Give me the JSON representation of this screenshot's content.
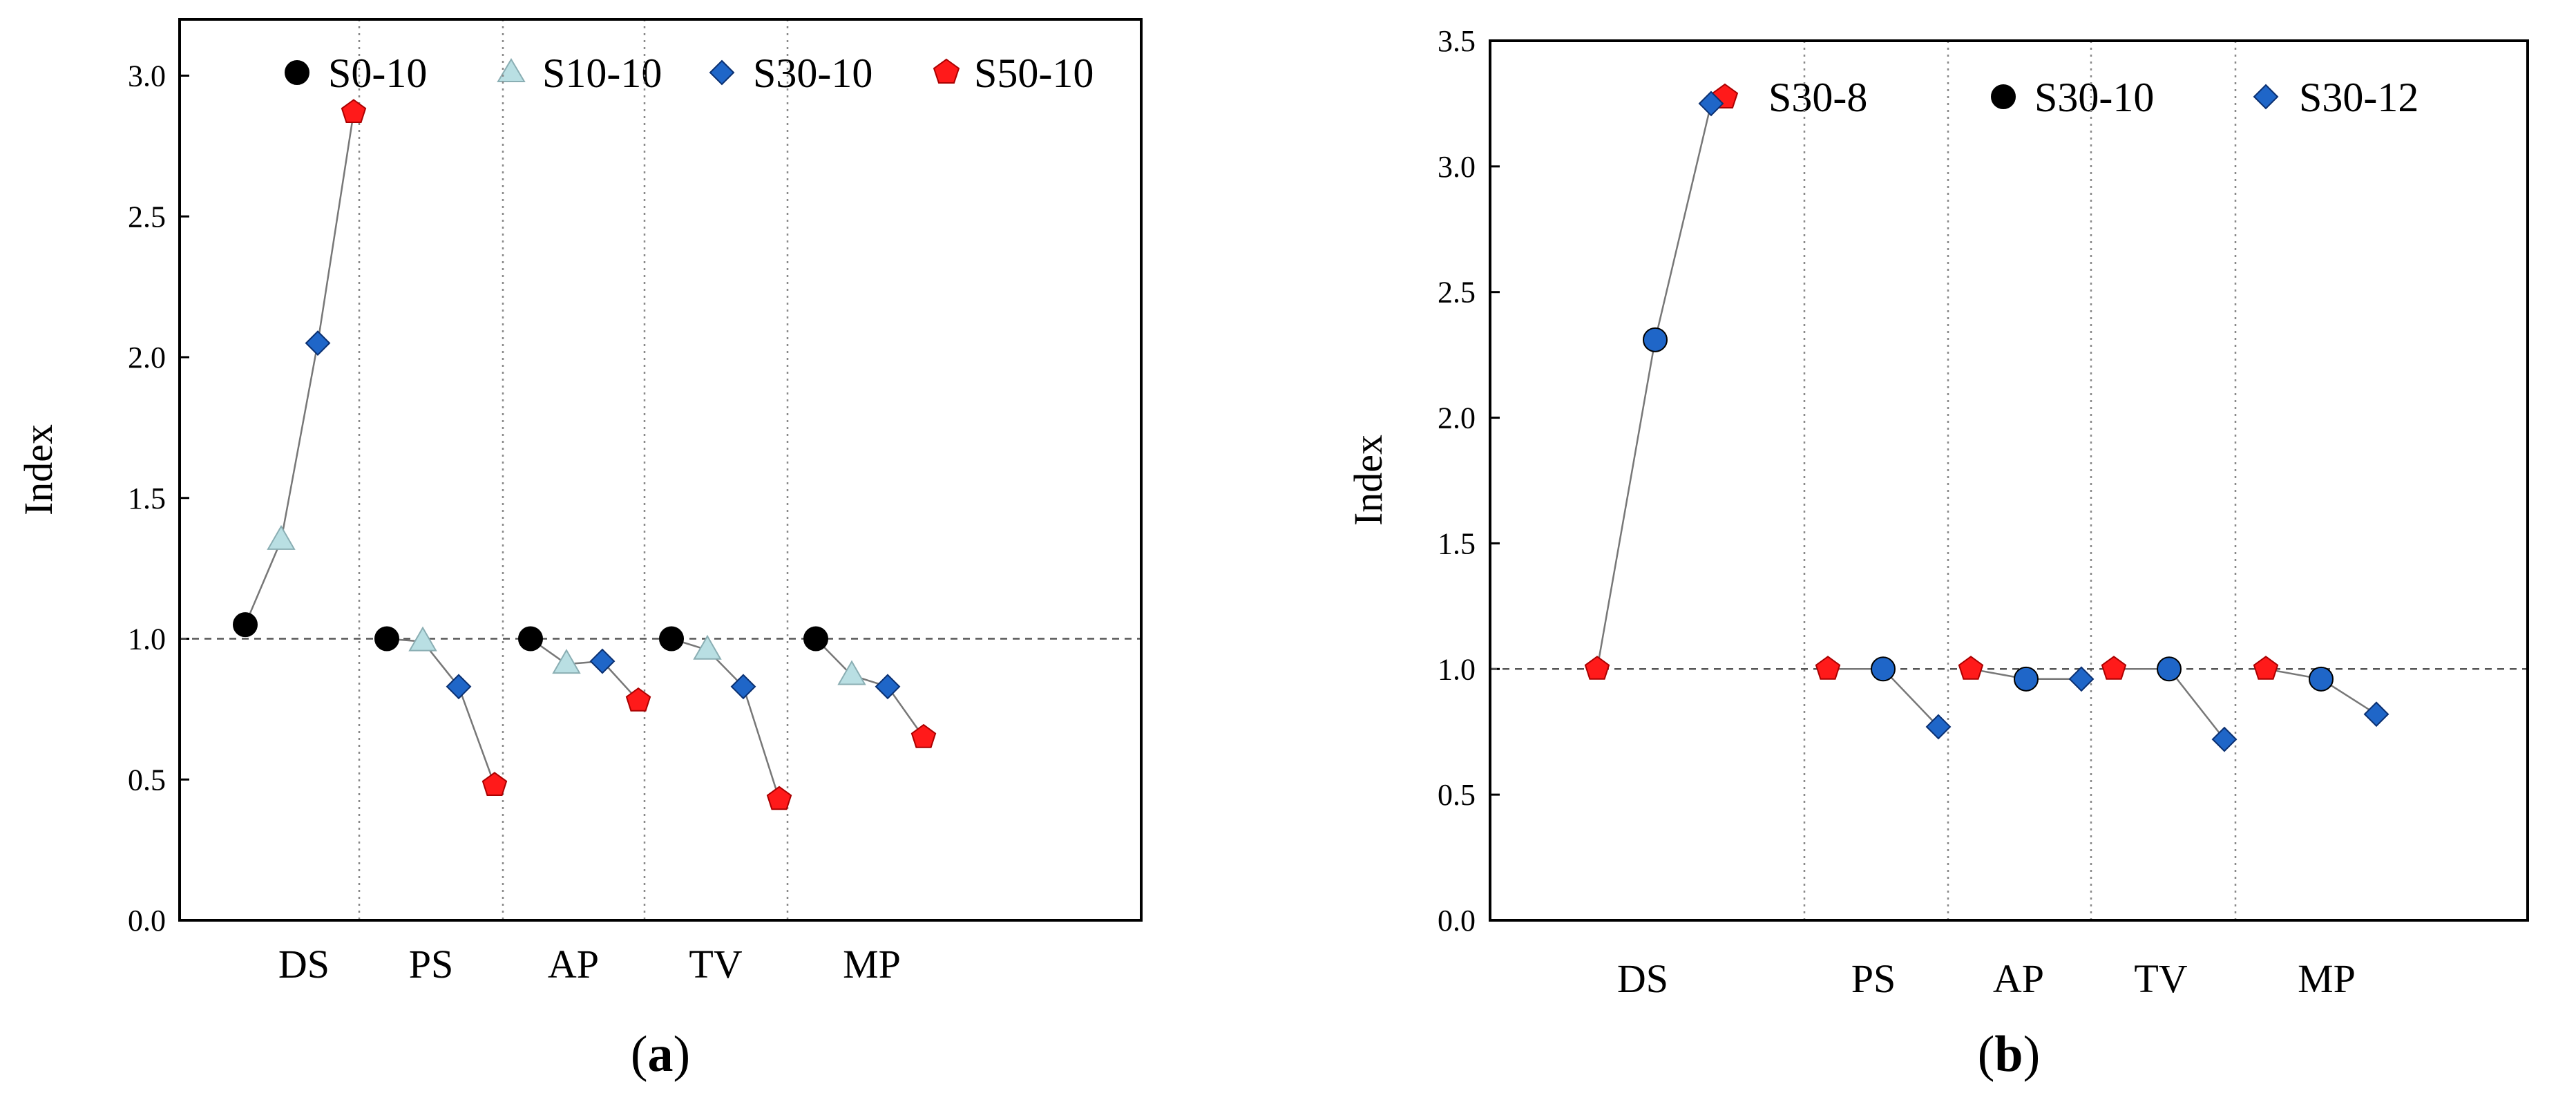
{
  "colors": {
    "S0-10": "#000000",
    "S10-10": "#b9dfe3",
    "S30-10": "#1f66c8",
    "S50-10": "#ff1a1a",
    "S30-8": "#ff1a1a",
    "S30-12": "#1f66c8",
    "line": "#777777",
    "ref": "#555555",
    "sep": "#888888"
  },
  "chart_data": [
    {
      "type": "scatter",
      "panel": "a",
      "caption_open": "(",
      "caption_letter": "a",
      "caption_close": ")",
      "ylabel": "Index",
      "ylim": [
        0,
        3.2
      ],
      "yticks": [
        "0.0",
        "0.5",
        "1.0",
        "1.5",
        "2.0",
        "2.5",
        "3.0"
      ],
      "reference_line": 1.0,
      "categories": [
        "DS",
        "PS",
        "AP",
        "TV",
        "MP"
      ],
      "legend_position": "top",
      "series": [
        {
          "name": "S0-10",
          "marker": "circle",
          "values": [
            1.05,
            1.0,
            1.0,
            1.0,
            1.0
          ]
        },
        {
          "name": "S10-10",
          "marker": "triangle",
          "values": [
            1.35,
            0.99,
            0.91,
            0.96,
            0.87
          ]
        },
        {
          "name": "S30-10",
          "marker": "diamond",
          "values": [
            2.05,
            0.83,
            0.92,
            0.83,
            0.83
          ]
        },
        {
          "name": "S50-10",
          "marker": "pentagon",
          "values": [
            2.87,
            0.48,
            0.78,
            0.43,
            0.65
          ]
        }
      ]
    },
    {
      "type": "scatter",
      "panel": "b",
      "caption_open": "(",
      "caption_letter": "b",
      "caption_close": ")",
      "ylabel": "Index",
      "ylim": [
        0,
        3.5
      ],
      "yticks": [
        "0.0",
        "0.5",
        "1.0",
        "1.5",
        "2.0",
        "2.5",
        "3.0",
        "3.5"
      ],
      "reference_line": 1.0,
      "categories": [
        "DS",
        "PS",
        "AP",
        "TV",
        "MP"
      ],
      "legend_position": "top",
      "series": [
        {
          "name": "S30-8",
          "marker": "pentagon",
          "values": [
            1.0,
            1.0,
            1.0,
            1.0,
            1.0
          ]
        },
        {
          "name": "S30-10",
          "marker": "circle",
          "values": [
            2.31,
            1.0,
            0.96,
            1.0,
            0.96
          ]
        },
        {
          "name": "S30-12",
          "marker": "diamond",
          "values": [
            3.25,
            0.77,
            0.96,
            0.72,
            0.82
          ]
        }
      ]
    }
  ]
}
